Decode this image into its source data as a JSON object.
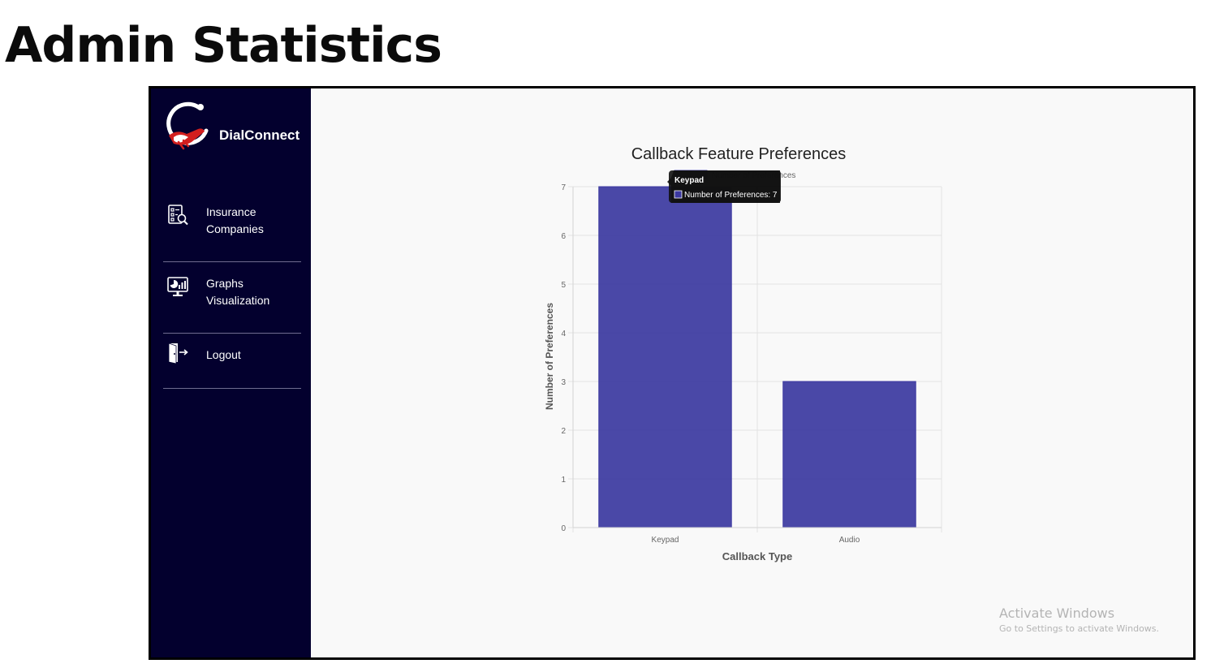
{
  "page": {
    "heading": "Admin Statistics"
  },
  "app": {
    "brand_name": "DialConnect",
    "colors": {
      "sidebar_bg": "#03002e",
      "accent_red": "#d21f1f",
      "bar_fill": "#3b38a0",
      "content_bg": "#f9f9f9"
    }
  },
  "sidebar": {
    "items": [
      {
        "label": "Insurance Companies",
        "icon": "insurance-companies-icon"
      },
      {
        "label": "Graphs Visualization",
        "icon": "graphs-visualization-icon"
      },
      {
        "label": "Logout",
        "icon": "logout-icon"
      }
    ]
  },
  "chart_data": {
    "type": "bar",
    "title": "Callback Feature Preferences",
    "xlabel": "Callback Type",
    "ylabel": "Number of Preferences",
    "categories": [
      "Keypad",
      "Audio"
    ],
    "series": [
      {
        "name": "Number of Preferences",
        "values": [
          7,
          3
        ]
      }
    ],
    "ylim": [
      0,
      7
    ],
    "yticks": [
      0,
      1,
      2,
      3,
      4,
      5,
      6,
      7
    ],
    "grid": true,
    "legend_position": "top",
    "tooltip": {
      "title": "Keypad",
      "line": "Number of Preferences: 7"
    }
  },
  "watermark": {
    "title": "Activate Windows",
    "subtitle": "Go to Settings to activate Windows."
  }
}
